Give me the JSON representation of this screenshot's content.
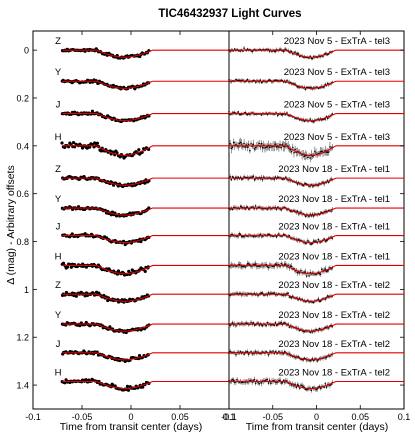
{
  "chart_data": {
    "type": "scatter",
    "title": "TIC46432937 Light Curves",
    "ylabel": "Δ (mag) - Arbitrary offsets",
    "y_axis": {
      "range": [
        1.5,
        -0.08
      ],
      "inverted": true,
      "ticks": [
        0,
        0.2,
        0.4,
        0.6,
        0.8,
        1,
        1.2,
        1.4
      ],
      "tick_labels": [
        "0",
        "0.2",
        "0.4",
        "0.6",
        "0.8",
        "1",
        "1.2",
        "1.4"
      ]
    },
    "panels": [
      {
        "name": "binned-light-curves",
        "xlabel": "Time from transit center (days)",
        "xlim": [
          -0.1,
          0.1
        ],
        "x_ticks": [
          -0.1,
          -0.05,
          0,
          0.05,
          0.1
        ],
        "x_tick_labels": [
          "-0.1",
          "-0.05",
          "0",
          "0.05",
          "0.1"
        ],
        "point_style": "filled-dots"
      },
      {
        "name": "unbinned-light-curves",
        "xlabel": "Time from transit center (days)",
        "xlim": [
          -0.1,
          0.1
        ],
        "x_ticks": [
          -0.1,
          -0.05,
          0,
          0.05,
          0.1
        ],
        "x_tick_labels": [
          "-0.1",
          "-0.05",
          "0",
          "0.05",
          "0.1"
        ],
        "point_style": "error-bars"
      }
    ],
    "series": [
      {
        "band": "Z",
        "label": "2023 Nov 5 - ExTrA - tel3",
        "offset": 0.0,
        "depth": 0.03,
        "noise": 0.008
      },
      {
        "band": "Y",
        "label": "2023 Nov 5 - ExTrA - tel3",
        "offset": 0.13,
        "depth": 0.03,
        "noise": 0.008
      },
      {
        "band": "J",
        "label": "2023 Nov 5 - ExTrA - tel3",
        "offset": 0.265,
        "depth": 0.03,
        "noise": 0.008
      },
      {
        "band": "H",
        "label": "2023 Nov 5 - ExTrA - tel3",
        "offset": 0.4,
        "depth": 0.04,
        "noise": 0.018
      },
      {
        "band": "Z",
        "label": "2023 Nov 18 - ExTrA - tel1",
        "offset": 0.535,
        "depth": 0.03,
        "noise": 0.009
      },
      {
        "band": "Y",
        "label": "2023 Nov 18 - ExTrA - tel1",
        "offset": 0.66,
        "depth": 0.03,
        "noise": 0.009
      },
      {
        "band": "J",
        "label": "2023 Nov 18 - ExTrA - tel1",
        "offset": 0.775,
        "depth": 0.03,
        "noise": 0.009
      },
      {
        "band": "H",
        "label": "2023 Nov 18 - ExTrA - tel1",
        "offset": 0.9,
        "depth": 0.035,
        "noise": 0.012
      },
      {
        "band": "Z",
        "label": "2023 Nov 18 - ExTrA - tel2",
        "offset": 1.02,
        "depth": 0.03,
        "noise": 0.009
      },
      {
        "band": "Y",
        "label": "2023 Nov 18 - ExTrA - tel2",
        "offset": 1.145,
        "depth": 0.03,
        "noise": 0.009
      },
      {
        "band": "J",
        "label": "2023 Nov 18 - ExTrA - tel2",
        "offset": 1.265,
        "depth": 0.03,
        "noise": 0.009
      },
      {
        "band": "H",
        "label": "2023 Nov 18 - ExTrA - tel2",
        "offset": 1.385,
        "depth": 0.03,
        "noise": 0.011
      }
    ],
    "model": {
      "color": "#e00000",
      "transit_x_range": [
        -0.035,
        0.022
      ]
    },
    "point_color": "#000000",
    "grid": false,
    "legend": "none"
  }
}
